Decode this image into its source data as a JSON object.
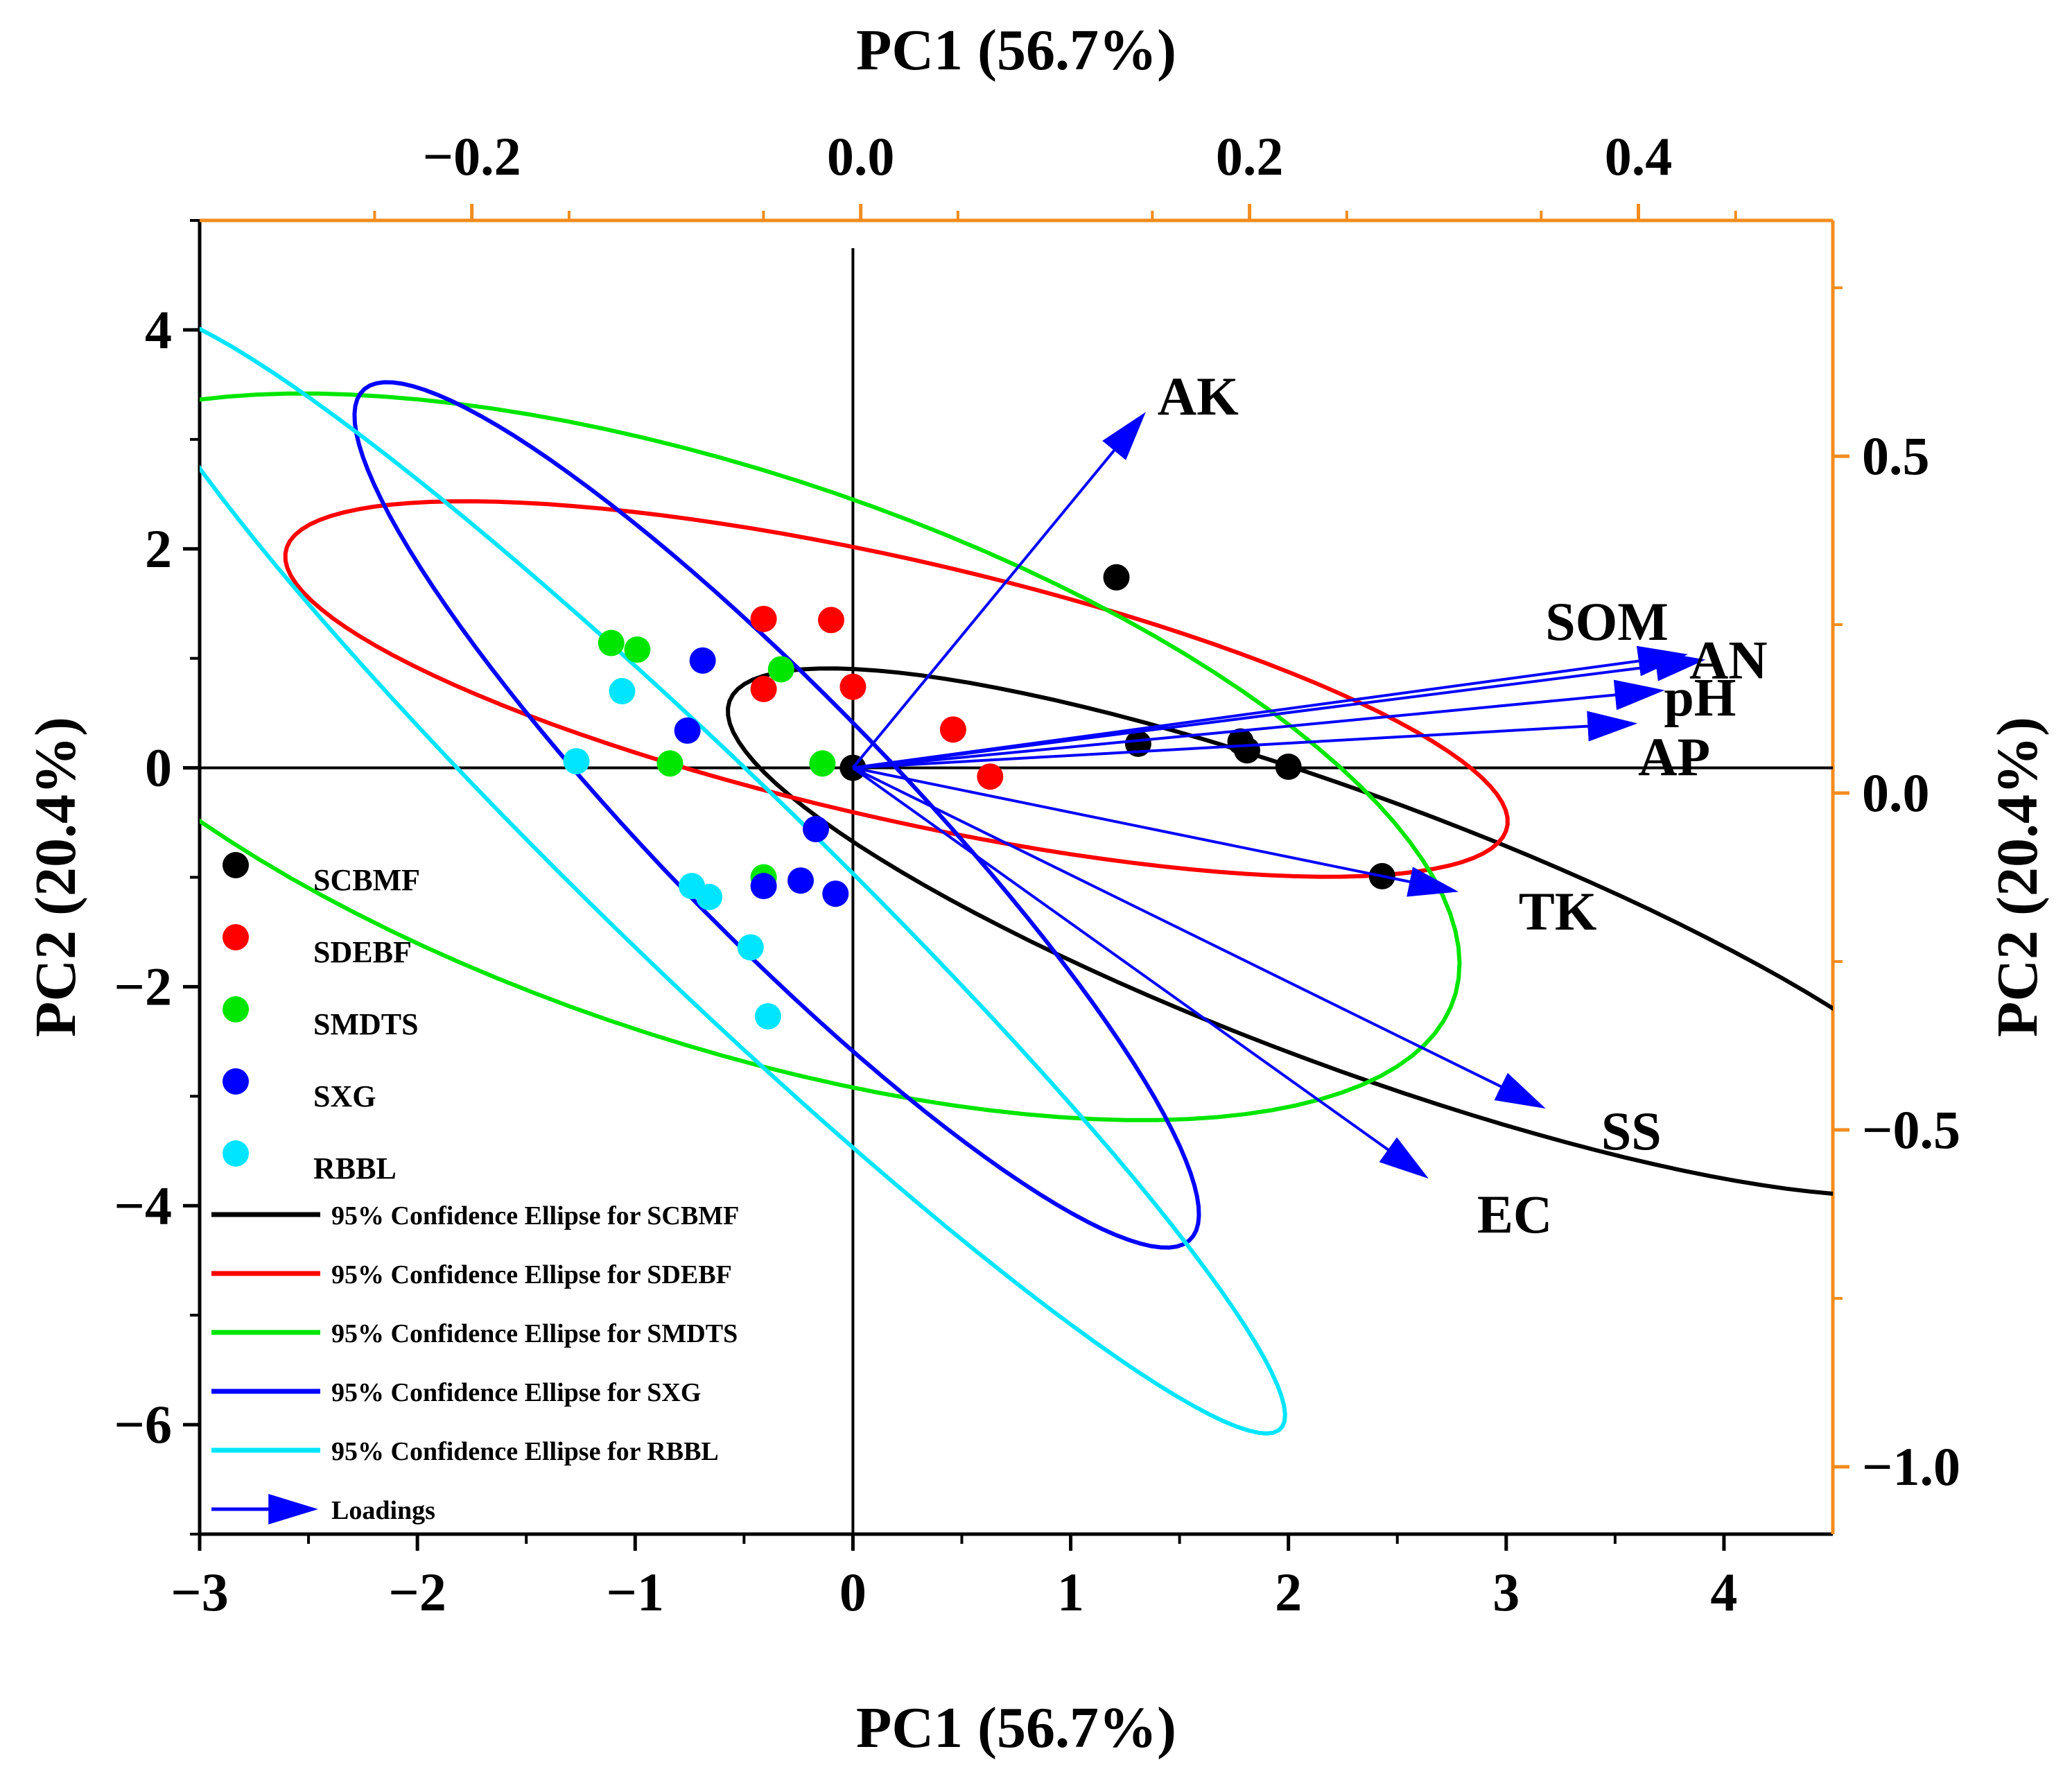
{
  "chart_data": {
    "type": "scatter",
    "subtype": "PCA biplot",
    "title": "",
    "xlabel": "PC1 (56.7%)",
    "ylabel": "PC2 (20.4%)",
    "x2label": "PC1 (56.7%)",
    "y2label": "PC2 (20.4%)",
    "xlim": [
      -3,
      4.5
    ],
    "ylim": [
      -7,
      5
    ],
    "x2lim": [
      -0.34,
      0.5
    ],
    "y2lim": [
      -1.1,
      0.85
    ],
    "xticks": [
      -3,
      -2,
      -1,
      0,
      1,
      2,
      3,
      4
    ],
    "xtick_labels": [
      "−3",
      "−2",
      "−1",
      "0",
      "1",
      "2",
      "3",
      "4"
    ],
    "yticks": [
      -6,
      -4,
      -2,
      0,
      2,
      4
    ],
    "ytick_labels": [
      "−6",
      "−4",
      "−2",
      "0",
      "2",
      "4"
    ],
    "x2ticks": [
      -0.2,
      0.0,
      0.2,
      0.4
    ],
    "x2tick_labels": [
      "−0.2",
      "0.0",
      "0.2",
      "0.4"
    ],
    "y2ticks": [
      -1.0,
      -0.5,
      0.0,
      0.5
    ],
    "y2tick_labels": [
      "−1.0",
      "−0.5",
      "0.0",
      "0.5"
    ],
    "secondary_axis_color": "#F28C1E",
    "legend_position": "bottom-left",
    "series": [
      {
        "name": "SCBMF",
        "color": "#000000",
        "points": [
          [
            1.21,
            1.74
          ],
          [
            1.31,
            0.22
          ],
          [
            1.78,
            0.24
          ],
          [
            1.81,
            0.16
          ],
          [
            2.0,
            0.01
          ],
          [
            2.43,
            -0.99
          ],
          [
            0.0,
            0.0
          ]
        ]
      },
      {
        "name": "SDEBF",
        "color": "#FF0000",
        "points": [
          [
            -0.41,
            1.36
          ],
          [
            -0.1,
            1.35
          ],
          [
            -0.41,
            0.72
          ],
          [
            0.0,
            0.74
          ],
          [
            0.46,
            0.35
          ],
          [
            0.63,
            -0.08
          ]
        ]
      },
      {
        "name": "SMDTS",
        "color": "#00E600",
        "points": [
          [
            -1.11,
            1.14
          ],
          [
            -0.99,
            1.08
          ],
          [
            -0.33,
            0.9
          ],
          [
            -0.84,
            0.04
          ],
          [
            -0.14,
            0.04
          ],
          [
            -0.41,
            -1.0
          ]
        ]
      },
      {
        "name": "SXG",
        "color": "#0000FF",
        "points": [
          [
            -0.69,
            0.98
          ],
          [
            -0.76,
            0.34
          ],
          [
            -0.17,
            -0.56
          ],
          [
            -0.41,
            -1.08
          ],
          [
            -0.24,
            -1.03
          ],
          [
            -0.08,
            -1.15
          ]
        ]
      },
      {
        "name": "RBBL",
        "color": "#00E5FF",
        "points": [
          [
            -1.06,
            0.7
          ],
          [
            -1.27,
            0.06
          ],
          [
            -0.74,
            -1.08
          ],
          [
            -0.66,
            -1.18
          ],
          [
            -0.47,
            -1.64
          ],
          [
            -0.39,
            -2.27
          ]
        ]
      }
    ],
    "ellipses": [
      {
        "name": "95% Confidence Ellipse for SCBMF",
        "color": "#000000",
        "center": [
          2.3,
          -1.5
        ],
        "semi_major": 3.6,
        "semi_minor": 1.05,
        "angle_deg": -39
      },
      {
        "name": "95% Confidence Ellipse for SDEBF",
        "color": "#FF0000",
        "center": [
          0.2,
          0.72
        ],
        "semi_major": 3.1,
        "semi_minor": 1.1,
        "angle_deg": -27
      },
      {
        "name": "95% Confidence Ellipse for SMDTS",
        "color": "#00E600",
        "center": [
          -0.6,
          0.1
        ],
        "semi_major": 4.2,
        "semi_minor": 2.2,
        "angle_deg": -44
      },
      {
        "name": "95% Confidence Ellipse for SXG",
        "color": "#0000FF",
        "center": [
          -0.35,
          -0.43
        ],
        "semi_major": 4.35,
        "semi_minor": 0.68,
        "angle_deg": -65
      },
      {
        "name": "95% Confidence Ellipse for RBBL",
        "color": "#00E5FF",
        "center": [
          -0.68,
          -0.95
        ],
        "semi_major": 5.75,
        "semi_minor": 0.6,
        "angle_deg": -63
      }
    ],
    "loadings": {
      "name": "Loadings",
      "color": "#0000FF",
      "vectors": [
        {
          "label": "AK",
          "x": 0.145,
          "y": 0.56
        },
        {
          "label": "SOM",
          "x": 0.423,
          "y": 0.205
        },
        {
          "label": "AN",
          "x": 0.432,
          "y": 0.197
        },
        {
          "label": "pH",
          "x": 0.411,
          "y": 0.152
        },
        {
          "label": "AP",
          "x": 0.397,
          "y": 0.103
        },
        {
          "label": "TK",
          "x": 0.305,
          "y": -0.145
        },
        {
          "label": "SS",
          "x": 0.35,
          "y": -0.465
        },
        {
          "label": "EC",
          "x": 0.29,
          "y": -0.568
        }
      ]
    }
  }
}
